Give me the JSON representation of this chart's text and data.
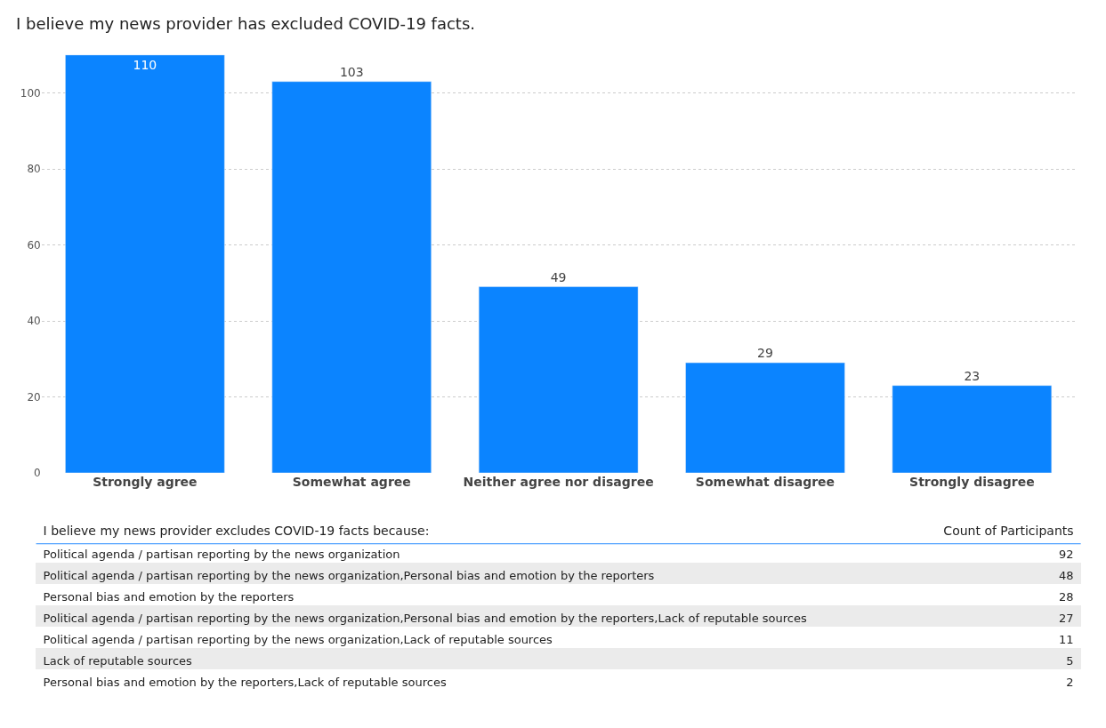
{
  "chart_data": [
    {
      "type": "bar",
      "title": "I believe my news provider has excluded COVID-19 facts.",
      "categories": [
        "Strongly agree",
        "Somewhat agree",
        "Neither agree nor disagree",
        "Somewhat disagree",
        "Strongly disagree"
      ],
      "values": [
        110,
        103,
        49,
        29,
        23
      ],
      "color": "#0b84ff",
      "ylim": [
        0,
        110
      ],
      "yticks": [
        0,
        20,
        40,
        60,
        80,
        100
      ],
      "grid": "y",
      "data_labels": true
    },
    {
      "type": "other",
      "title": "I believe my news provider excludes COVID-19 facts because:",
      "ylabel": "Count of Participants",
      "categories": [
        "Political agenda / partisan reporting by the news organization",
        "Political agenda / partisan reporting by the news organization,Personal bias and emotion by the reporters",
        "Personal bias and emotion by the reporters",
        "Political agenda / partisan reporting by the news organization,Personal bias and emotion by the reporters,Lack of reputable sources",
        "Political agenda / partisan reporting by the news organization,Lack of reputable sources",
        "Lack of reputable sources",
        "Personal bias and emotion by the reporters,Lack of reputable sources"
      ],
      "values": [
        92,
        48,
        28,
        27,
        11,
        5,
        2
      ],
      "data_labels": true
    }
  ]
}
